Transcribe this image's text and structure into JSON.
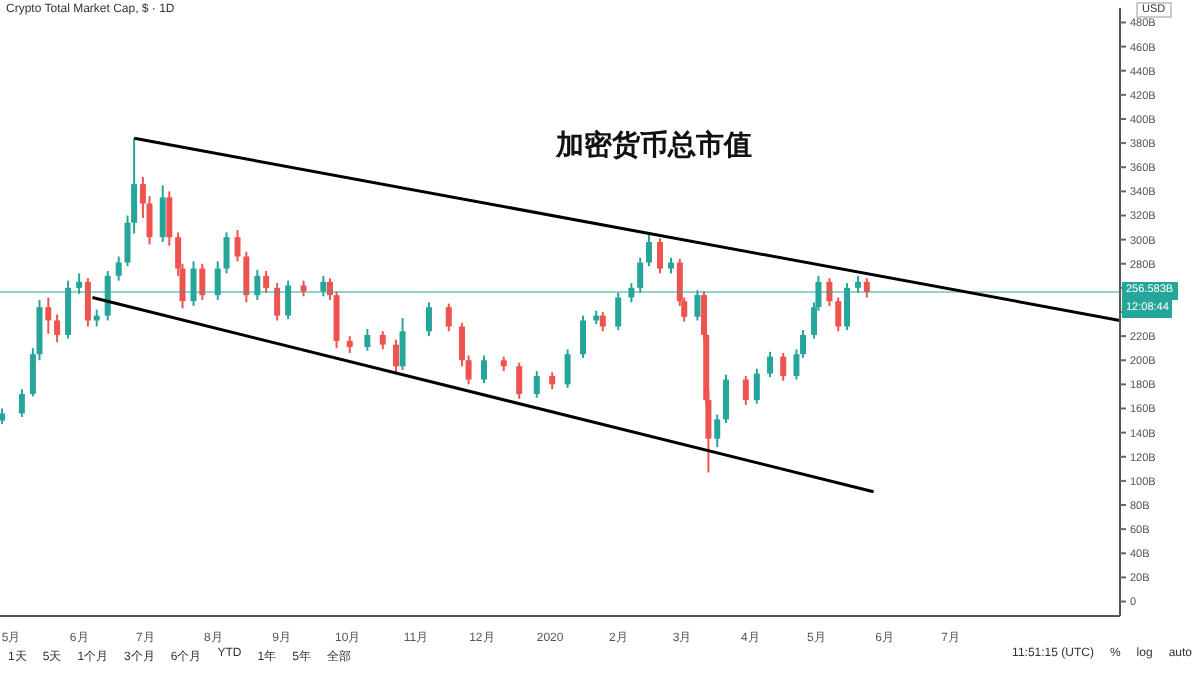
{
  "chart_data": {
    "type": "candlestick",
    "title": "加密货币总市值",
    "subtitle": "Crypto Total Market Cap, $ · 1D",
    "ylabel": "USD",
    "x": [
      "2019-04-27",
      "2019-05-06",
      "2019-05-11",
      "2019-05-14",
      "2019-05-18",
      "2019-05-22",
      "2019-05-27",
      "2019-06-01",
      "2019-06-05",
      "2019-06-09",
      "2019-06-14",
      "2019-06-19",
      "2019-06-23",
      "2019-06-26",
      "2019-06-30",
      "2019-07-03",
      "2019-07-09",
      "2019-07-12",
      "2019-07-16",
      "2019-07-18",
      "2019-07-23",
      "2019-07-27",
      "2019-08-03",
      "2019-08-07",
      "2019-08-12",
      "2019-08-16",
      "2019-08-21",
      "2019-08-25",
      "2019-08-30",
      "2019-09-04",
      "2019-09-11",
      "2019-09-20",
      "2019-09-23",
      "2019-09-26",
      "2019-10-02",
      "2019-10-10",
      "2019-10-17",
      "2019-10-23",
      "2019-10-26",
      "2019-11-07",
      "2019-11-16",
      "2019-11-22",
      "2019-11-25",
      "2019-12-02",
      "2019-12-11",
      "2019-12-18",
      "2019-12-26",
      "2020-01-02",
      "2020-01-09",
      "2020-01-16",
      "2020-01-22",
      "2020-01-25",
      "2020-02-01",
      "2020-02-07",
      "2020-02-11",
      "2020-02-15",
      "2020-02-20",
      "2020-02-25",
      "2020-02-29",
      "2020-03-02",
      "2020-03-08",
      "2020-03-11",
      "2020-03-12",
      "2020-03-13",
      "2020-03-17",
      "2020-03-21",
      "2020-03-30",
      "2020-04-04",
      "2020-04-10",
      "2020-04-16",
      "2020-04-22",
      "2020-04-25",
      "2020-04-30",
      "2020-05-02",
      "2020-05-07",
      "2020-05-11",
      "2020-05-15",
      "2020-05-20",
      "2020-05-24"
    ],
    "ohlc": [
      [
        150,
        160,
        147,
        156
      ],
      [
        156,
        176,
        153,
        172
      ],
      [
        172,
        210,
        170,
        205
      ],
      [
        205,
        250,
        200,
        244
      ],
      [
        244,
        252,
        222,
        233
      ],
      [
        233,
        238,
        215,
        221
      ],
      [
        221,
        266,
        218,
        260
      ],
      [
        260,
        272,
        255,
        265
      ],
      [
        265,
        268,
        228,
        233
      ],
      [
        233,
        242,
        228,
        237
      ],
      [
        237,
        274,
        233,
        270
      ],
      [
        270,
        286,
        266,
        281
      ],
      [
        281,
        320,
        278,
        314
      ],
      [
        314,
        384,
        305,
        346
      ],
      [
        346,
        352,
        318,
        330
      ],
      [
        330,
        336,
        296,
        302
      ],
      [
        302,
        345,
        298,
        335
      ],
      [
        335,
        340,
        295,
        302
      ],
      [
        302,
        306,
        270,
        276
      ],
      [
        276,
        280,
        243,
        249
      ],
      [
        249,
        282,
        245,
        276
      ],
      [
        276,
        280,
        250,
        254
      ],
      [
        254,
        282,
        250,
        276
      ],
      [
        276,
        306,
        272,
        302
      ],
      [
        302,
        308,
        282,
        286
      ],
      [
        286,
        290,
        248,
        254
      ],
      [
        254,
        275,
        250,
        270
      ],
      [
        270,
        274,
        256,
        260
      ],
      [
        260,
        264,
        233,
        237
      ],
      [
        237,
        266,
        234,
        262
      ],
      [
        262,
        266,
        253,
        257
      ],
      [
        257,
        270,
        253,
        265
      ],
      [
        265,
        268,
        250,
        254
      ],
      [
        254,
        257,
        210,
        216
      ],
      [
        216,
        220,
        206,
        211
      ],
      [
        211,
        226,
        208,
        221
      ],
      [
        221,
        224,
        209,
        213
      ],
      [
        213,
        217,
        190,
        195
      ],
      [
        195,
        235,
        192,
        224
      ],
      [
        224,
        248,
        220,
        244
      ],
      [
        244,
        247,
        224,
        228
      ],
      [
        228,
        231,
        195,
        200
      ],
      [
        200,
        204,
        180,
        184
      ],
      [
        184,
        204,
        181,
        200
      ],
      [
        200,
        203,
        191,
        195
      ],
      [
        195,
        198,
        168,
        172
      ],
      [
        172,
        191,
        169,
        187
      ],
      [
        187,
        190,
        176,
        180
      ],
      [
        180,
        209,
        177,
        205
      ],
      [
        205,
        237,
        202,
        233
      ],
      [
        233,
        241,
        230,
        237
      ],
      [
        237,
        240,
        224,
        228
      ],
      [
        228,
        256,
        225,
        252
      ],
      [
        252,
        264,
        248,
        260
      ],
      [
        260,
        285,
        256,
        281
      ],
      [
        281,
        305,
        278,
        298
      ],
      [
        298,
        301,
        272,
        276
      ],
      [
        276,
        285,
        272,
        281
      ],
      [
        281,
        284,
        245,
        249
      ],
      [
        249,
        252,
        232,
        236
      ],
      [
        236,
        258,
        233,
        254
      ],
      [
        254,
        257,
        217,
        221
      ],
      [
        221,
        224,
        163,
        167
      ],
      [
        167,
        175,
        107,
        135
      ],
      [
        135,
        155,
        128,
        151
      ],
      [
        151,
        188,
        148,
        184
      ],
      [
        184,
        187,
        163,
        167
      ],
      [
        167,
        193,
        164,
        189
      ],
      [
        189,
        207,
        186,
        203
      ],
      [
        203,
        206,
        183,
        187
      ],
      [
        187,
        209,
        184,
        205
      ],
      [
        205,
        225,
        202,
        221
      ],
      [
        221,
        248,
        218,
        244
      ],
      [
        244,
        270,
        241,
        265
      ],
      [
        265,
        268,
        245,
        249
      ],
      [
        249,
        252,
        224,
        228
      ],
      [
        228,
        264,
        225,
        260
      ],
      [
        260,
        270,
        256,
        265
      ],
      [
        265,
        268,
        252,
        256.58
      ]
    ],
    "colors": [
      "#26a69a",
      "#26a69a",
      "#26a69a",
      "#26a69a",
      "#ef5350",
      "#ef5350",
      "#26a69a",
      "#26a69a",
      "#ef5350",
      "#26a69a",
      "#26a69a",
      "#26a69a",
      "#26a69a",
      "#26a69a",
      "#ef5350",
      "#ef5350",
      "#26a69a",
      "#ef5350",
      "#ef5350",
      "#ef5350",
      "#26a69a",
      "#ef5350",
      "#26a69a",
      "#26a69a",
      "#ef5350",
      "#ef5350",
      "#26a69a",
      "#ef5350",
      "#ef5350",
      "#26a69a",
      "#ef5350",
      "#26a69a",
      "#ef5350",
      "#ef5350",
      "#ef5350",
      "#26a69a",
      "#ef5350",
      "#ef5350",
      "#26a69a",
      "#26a69a",
      "#ef5350",
      "#ef5350",
      "#ef5350",
      "#26a69a",
      "#ef5350",
      "#ef5350",
      "#26a69a",
      "#ef5350",
      "#26a69a",
      "#26a69a",
      "#26a69a",
      "#ef5350",
      "#26a69a",
      "#26a69a",
      "#26a69a",
      "#26a69a",
      "#ef5350",
      "#26a69a",
      "#ef5350",
      "#ef5350",
      "#26a69a",
      "#ef5350",
      "#ef5350",
      "#ef5350",
      "#26a69a",
      "#26a69a",
      "#ef5350",
      "#26a69a",
      "#26a69a",
      "#ef5350",
      "#26a69a",
      "#26a69a",
      "#26a69a",
      "#26a69a",
      "#ef5350",
      "#ef5350",
      "#26a69a",
      "#26a69a",
      "#ef5350"
    ],
    "series": [
      {
        "type": "line",
        "color": "#000000",
        "x": [
          "2019-06-26",
          "2020-09-16"
        ],
        "values": [
          384,
          233
        ]
      },
      {
        "type": "line",
        "color": "#000000",
        "x": [
          "2019-06-07",
          "2020-05-27"
        ],
        "values": [
          252,
          91
        ]
      }
    ],
    "xlim": [
      "2019-04-26",
      "2020-09-16"
    ],
    "xticks": [
      {
        "value": "2019-05-01",
        "label": "5月"
      },
      {
        "value": "2019-06-01",
        "label": "6月"
      },
      {
        "value": "2019-07-01",
        "label": "7月"
      },
      {
        "value": "2019-08-01",
        "label": "8月"
      },
      {
        "value": "2019-09-01",
        "label": "9月"
      },
      {
        "value": "2019-10-01",
        "label": "10月"
      },
      {
        "value": "2019-11-01",
        "label": "11月"
      },
      {
        "value": "2019-12-01",
        "label": "12月"
      },
      {
        "value": "2020-01-01",
        "label": "2020"
      },
      {
        "value": "2020-02-01",
        "label": "2月"
      },
      {
        "value": "2020-03-01",
        "label": "3月"
      },
      {
        "value": "2020-04-01",
        "label": "4月"
      },
      {
        "value": "2020-05-01",
        "label": "5月"
      },
      {
        "value": "2020-06-01",
        "label": "6月"
      },
      {
        "value": "2020-07-01",
        "label": "7月"
      }
    ],
    "ylim": [
      -12,
      492
    ],
    "yticks": [
      0,
      {
        "value": 20,
        "label": "20B"
      },
      {
        "value": 40,
        "label": "40B"
      },
      {
        "value": 60,
        "label": "60B"
      },
      {
        "value": 80,
        "label": "80B"
      },
      {
        "value": 100,
        "label": "100B"
      },
      {
        "value": 120,
        "label": "120B"
      },
      {
        "value": 140,
        "label": "140B"
      },
      {
        "value": 160,
        "label": "160B"
      },
      {
        "value": 180,
        "label": "180B"
      },
      {
        "value": 200,
        "label": "200B"
      },
      {
        "value": 220,
        "label": "220B"
      },
      {
        "value": 240,
        "label": null
      },
      {
        "value": 260,
        "label": null
      },
      {
        "value": 280,
        "label": "280B"
      },
      {
        "value": 300,
        "label": "300B"
      },
      {
        "value": 320,
        "label": "320B"
      },
      {
        "value": 340,
        "label": "340B"
      },
      {
        "value": 360,
        "label": "360B"
      },
      {
        "value": 380,
        "label": "380B"
      },
      {
        "value": 400,
        "label": "400B"
      },
      {
        "value": 420,
        "label": "420B"
      },
      {
        "value": 440,
        "label": "440B"
      },
      {
        "value": 460,
        "label": "460B"
      },
      {
        "value": 480,
        "label": "480B"
      }
    ],
    "ref_lines": [
      {
        "axis": "y",
        "value": 256.58,
        "label": "256.583B",
        "color": "#26a69a"
      }
    ],
    "annotations": [
      "1天",
      "5天",
      "1个月",
      "3个月",
      "6个月",
      "YTD",
      "1年",
      "5年",
      "全部",
      "11:51:15 (UTC)",
      "%",
      "log",
      "auto",
      {
        "text": "12:08:44",
        "y": 256.58
      }
    ],
    "grid": false,
    "legend": false
  }
}
